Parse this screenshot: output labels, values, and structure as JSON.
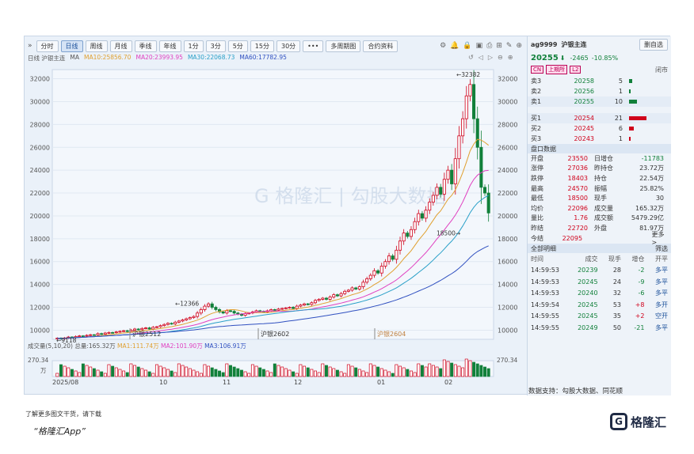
{
  "toolbar": {
    "items": [
      "分时",
      "日线",
      "周线",
      "月线",
      "季线",
      "年线",
      "1分",
      "3分",
      "5分",
      "15分",
      "30分",
      "•••",
      "多周期图",
      "合约资料"
    ],
    "active": "日线"
  },
  "ma_bar": {
    "prefix": "日线 沪银主连",
    "ma10": "MA10:25856.70",
    "ma20": "MA20:23993.95",
    "ma30": "MA30:22068.73",
    "ma60": "MA60:17782.95"
  },
  "chart_data": {
    "type": "candlestick",
    "y_ticks": [
      32000,
      30000,
      28000,
      26000,
      24000,
      22000,
      20000,
      18000,
      16000,
      14000,
      12000,
      10000
    ],
    "ylim": [
      9200,
      32800
    ],
    "x_labels": [
      "2025/08",
      "10",
      "11",
      "12",
      "01",
      "02"
    ],
    "contract_labels": [
      "沪银2512",
      "沪银2602",
      "沪银2604"
    ],
    "annotations": {
      "high": "32382",
      "low": "18500",
      "mid_high": "12366",
      "start_low": "9118"
    },
    "closes": [
      9300,
      9250,
      9320,
      9400,
      9350,
      9450,
      9500,
      9480,
      9550,
      9600,
      9580,
      9700,
      9650,
      9750,
      9800,
      9780,
      9850,
      9900,
      9950,
      9880,
      10000,
      10100,
      10050,
      10150,
      10200,
      10100,
      10250,
      10300,
      10400,
      10500,
      10600,
      10550,
      10700,
      10800,
      10900,
      11000,
      11100,
      11200,
      11500,
      11800,
      12100,
      12300,
      12000,
      11800,
      11600,
      11500,
      11700,
      11650,
      11500,
      11400,
      11300,
      11450,
      11500,
      11600,
      11700,
      11650,
      11600,
      11700,
      11800,
      11750,
      11850,
      11900,
      11950,
      12000,
      11900,
      12100,
      12200,
      12300,
      12250,
      12400,
      12600,
      12700,
      12800,
      12700,
      12900,
      13100,
      13000,
      13200,
      13400,
      13500,
      13700,
      13600,
      13800,
      14200,
      14500,
      14800,
      15200,
      15000,
      15600,
      16000,
      16500,
      16200,
      17000,
      17800,
      18500,
      18200,
      18800,
      19500,
      20200,
      19800,
      20500,
      21200,
      21800,
      22500,
      21900,
      23200,
      24000,
      22800,
      25000,
      27000,
      28500,
      30500,
      31500,
      28500,
      26000,
      22500,
      22000,
      20255
    ],
    "volume_ticks": [
      "270.34",
      "万"
    ],
    "ma_colors": {
      "ma10": "#e0a030",
      "ma20": "#e040c0",
      "ma30": "#2aa0c8",
      "ma60": "#3050c0"
    }
  },
  "volume_bar": {
    "title": "成交量(5,10,20)",
    "total": "总量:165.32万",
    "ma1": "MA1:111.74万",
    "ma2": "MA2:101.90万",
    "ma3": "MA3:106.91万",
    "top": "270.34",
    "unit": "万"
  },
  "panel": {
    "code": "ag9999",
    "name": "沪银主连",
    "add_label": "删自选",
    "price": "20255",
    "change": "-2465",
    "pct": "-10.85%",
    "tags": [
      "CN",
      "上期所",
      "L2"
    ],
    "status": "闭市",
    "asks": [
      {
        "label": "卖3",
        "price": "20258",
        "vol": "5"
      },
      {
        "label": "卖2",
        "price": "20256",
        "vol": "1"
      },
      {
        "label": "卖1",
        "price": "20255",
        "vol": "10"
      }
    ],
    "bids": [
      {
        "label": "买1",
        "price": "20254",
        "vol": "21"
      },
      {
        "label": "买2",
        "price": "20245",
        "vol": "6"
      },
      {
        "label": "买3",
        "price": "20243",
        "vol": "1"
      }
    ],
    "disk_title": "盘口数据",
    "stats": [
      [
        "开盘",
        "23550",
        "日增仓",
        "-11783"
      ],
      [
        "涨停",
        "27036",
        "昨持仓",
        "23.72万"
      ],
      [
        "跌停",
        "18403",
        "持仓",
        "22.54万"
      ],
      [
        "最高",
        "24570",
        "振幅",
        "25.82%"
      ],
      [
        "最低",
        "18500",
        "现手",
        "30"
      ],
      [
        "均价",
        "22096",
        "成交量",
        "165.32万"
      ],
      [
        "量比",
        "1.76",
        "成交额",
        "5479.29亿"
      ],
      [
        "昨结",
        "22720",
        "外盘",
        "81.97万"
      ],
      [
        "今结",
        "22095",
        "",
        ""
      ]
    ],
    "more": "更多>",
    "ticks_title": "全部明细",
    "filter": "筛选",
    "tick_header": [
      "时间",
      "成交",
      "现手",
      "增仓",
      "开平"
    ],
    "ticks": [
      [
        "14:59:53",
        "20239",
        "28",
        "-2",
        "多平"
      ],
      [
        "14:59:53",
        "20245",
        "24",
        "-9",
        "多平"
      ],
      [
        "14:59:53",
        "20240",
        "32",
        "-6",
        "多平"
      ],
      [
        "14:59:54",
        "20245",
        "53",
        "+8",
        "多开"
      ],
      [
        "14:59:55",
        "20245",
        "35",
        "+2",
        "空开"
      ],
      [
        "14:59:55",
        "20249",
        "50",
        "-21",
        "多平"
      ]
    ]
  },
  "footer": "数据支持：勾股大数据、同花顺",
  "bottom_note": "了解更多图文干货，请下载",
  "bottom_app": "“格隆汇App”",
  "logo_text": "格隆汇"
}
